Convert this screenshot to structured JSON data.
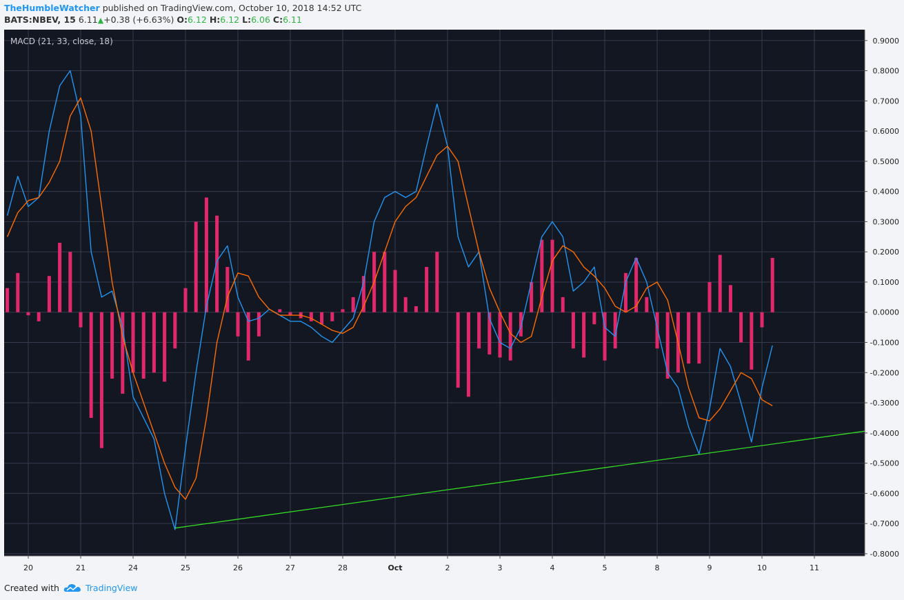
{
  "header": {
    "author": "TheHumbleWatcher",
    "published": "published on TradingView.com, October 10, 2018 14:52 UTC",
    "symbol": "BATS:NBEV, 15",
    "price": "6.11",
    "change": "+0.38 (+6.63%)",
    "open_label": "O:",
    "open": "6.12",
    "high_label": "H:",
    "high": "6.12",
    "low_label": "L:",
    "low": "6.06",
    "close_label": "C:",
    "close": "6.11"
  },
  "footer": {
    "created": "Created with",
    "brand": "TradingView"
  },
  "chart_data": {
    "type": "line",
    "title": "MACD (21, 33, close, 18)",
    "grid": true,
    "background": "#131722",
    "grid_color": "#363c4e",
    "xlim": [
      -0.4605,
      15.96
    ],
    "ylim": [
      -0.807,
      0.936
    ],
    "xticks": [
      {
        "value": 0,
        "label": "20"
      },
      {
        "value": 1,
        "label": "21"
      },
      {
        "value": 2,
        "label": "24"
      },
      {
        "value": 3,
        "label": "25"
      },
      {
        "value": 4,
        "label": "26"
      },
      {
        "value": 5,
        "label": "27"
      },
      {
        "value": 6,
        "label": "28"
      },
      {
        "value": 7,
        "label": "Oct"
      },
      {
        "value": 8,
        "label": "2"
      },
      {
        "value": 9,
        "label": "3"
      },
      {
        "value": 10,
        "label": "4"
      },
      {
        "value": 11,
        "label": "5"
      },
      {
        "value": 12,
        "label": "8"
      },
      {
        "value": 13,
        "label": "9"
      },
      {
        "value": 14,
        "label": "10"
      },
      {
        "value": 15,
        "label": "11"
      }
    ],
    "yticks": [
      {
        "value": 0.9,
        "label": "0.9000"
      },
      {
        "value": 0.8,
        "label": "0.8000"
      },
      {
        "value": 0.7,
        "label": "0.7000"
      },
      {
        "value": 0.6,
        "label": "0.6000"
      },
      {
        "value": 0.5,
        "label": "0.5000"
      },
      {
        "value": 0.4,
        "label": "0.4000"
      },
      {
        "value": 0.3,
        "label": "0.3000"
      },
      {
        "value": 0.2,
        "label": "0.2000"
      },
      {
        "value": 0.1,
        "label": "0.1000"
      },
      {
        "value": 0,
        "label": "0.0000"
      },
      {
        "value": -0.1,
        "label": "-0.1000"
      },
      {
        "value": -0.2,
        "label": "-0.2000"
      },
      {
        "value": -0.3,
        "label": "-0.3000"
      },
      {
        "value": -0.4,
        "label": "-0.4000"
      },
      {
        "value": -0.5,
        "label": "-0.5000"
      },
      {
        "value": -0.6,
        "label": "-0.6000"
      },
      {
        "value": -0.7,
        "label": "-0.7000"
      },
      {
        "value": -0.8,
        "label": "-0.8000"
      }
    ],
    "x": [
      -0.4,
      -0.2,
      0,
      0.2,
      0.4,
      0.6,
      0.8,
      1,
      1.2,
      1.4,
      1.6,
      1.8,
      2,
      2.2,
      2.4,
      2.6,
      2.8,
      3,
      3.2,
      3.4,
      3.6,
      3.8,
      4,
      4.2,
      4.4,
      4.6,
      4.8,
      5,
      5.2,
      5.4,
      5.6,
      5.8,
      6,
      6.2,
      6.4,
      6.6,
      6.8,
      7,
      7.2,
      7.4,
      7.6,
      7.8,
      8,
      8.2,
      8.4,
      8.6,
      8.8,
      9,
      9.2,
      9.4,
      9.6,
      9.8,
      10,
      10.2,
      10.4,
      10.6,
      10.8,
      11,
      11.2,
      11.4,
      11.6,
      11.8,
      12,
      12.2,
      12.4,
      12.6,
      12.8,
      13,
      13.2,
      13.4,
      13.6,
      13.8,
      14,
      14.2
    ],
    "series": [
      {
        "style": "histogram",
        "color": "#e0286a",
        "values": [
          0.08,
          0.13,
          -0.01,
          -0.03,
          0.12,
          0.23,
          0.2,
          -0.05,
          -0.35,
          -0.45,
          -0.22,
          -0.27,
          -0.2,
          -0.22,
          -0.2,
          -0.23,
          -0.12,
          0.08,
          0.3,
          0.38,
          0.32,
          0.15,
          -0.08,
          -0.16,
          -0.08,
          0,
          0.01,
          -0.01,
          -0.02,
          -0.03,
          -0.04,
          -0.03,
          0.01,
          0.05,
          0.12,
          0.2,
          0.2,
          0.14,
          0.05,
          0.02,
          0.15,
          0.2,
          0,
          -0.25,
          -0.28,
          -0.12,
          -0.14,
          -0.15,
          -0.16,
          -0.08,
          0.1,
          0.24,
          0.24,
          0.05,
          -0.12,
          -0.15,
          -0.04,
          -0.16,
          -0.12,
          0.13,
          0.18,
          0.05,
          -0.12,
          -0.22,
          -0.2,
          -0.17,
          -0.17,
          0.1,
          0.19,
          0.09,
          -0.1,
          -0.19,
          -0.05,
          0.18
        ]
      },
      {
        "style": "line",
        "color": "#2196f3",
        "values": [
          0.32,
          0.45,
          0.35,
          0.38,
          0.6,
          0.75,
          0.8,
          0.65,
          0.2,
          0.05,
          0.07,
          -0.05,
          -0.28,
          -0.35,
          -0.42,
          -0.6,
          -0.72,
          -0.45,
          -0.2,
          0.02,
          0.17,
          0.22,
          0.05,
          -0.03,
          -0.02,
          0.01,
          -0.01,
          -0.03,
          -0.03,
          -0.05,
          -0.08,
          -0.1,
          -0.06,
          -0.02,
          0.1,
          0.3,
          0.38,
          0.4,
          0.38,
          0.4,
          0.55,
          0.69,
          0.55,
          0.25,
          0.15,
          0.2,
          -0.02,
          -0.1,
          -0.12,
          -0.05,
          0.1,
          0.25,
          0.3,
          0.25,
          0.07,
          0.1,
          0.15,
          -0.05,
          -0.08,
          0.1,
          0.18,
          0.1,
          -0.05,
          -0.2,
          -0.25,
          -0.38,
          -0.47,
          -0.32,
          -0.12,
          -0.18,
          -0.3,
          -0.43,
          -0.25,
          -0.11
        ]
      },
      {
        "style": "line",
        "color": "#ff6d00",
        "values": [
          0.25,
          0.33,
          0.37,
          0.38,
          0.43,
          0.5,
          0.65,
          0.71,
          0.6,
          0.35,
          0.1,
          -0.08,
          -0.2,
          -0.3,
          -0.4,
          -0.5,
          -0.58,
          -0.62,
          -0.55,
          -0.35,
          -0.1,
          0.05,
          0.13,
          0.12,
          0.05,
          0.01,
          -0.01,
          -0.01,
          -0.01,
          -0.02,
          -0.04,
          -0.06,
          -0.07,
          -0.05,
          0.02,
          0.1,
          0.2,
          0.3,
          0.35,
          0.38,
          0.45,
          0.52,
          0.55,
          0.5,
          0.35,
          0.2,
          0.08,
          0,
          -0.07,
          -0.1,
          -0.08,
          0.05,
          0.17,
          0.22,
          0.2,
          0.15,
          0.12,
          0.08,
          0.02,
          0,
          0.02,
          0.08,
          0.1,
          0.04,
          -0.1,
          -0.25,
          -0.35,
          -0.36,
          -0.32,
          -0.26,
          -0.2,
          -0.22,
          -0.29,
          -0.31
        ]
      }
    ],
    "trendline": {
      "color": "#33dd22",
      "x": [
        2.8,
        15.96
      ],
      "values": [
        -0.715,
        -0.394
      ]
    }
  }
}
